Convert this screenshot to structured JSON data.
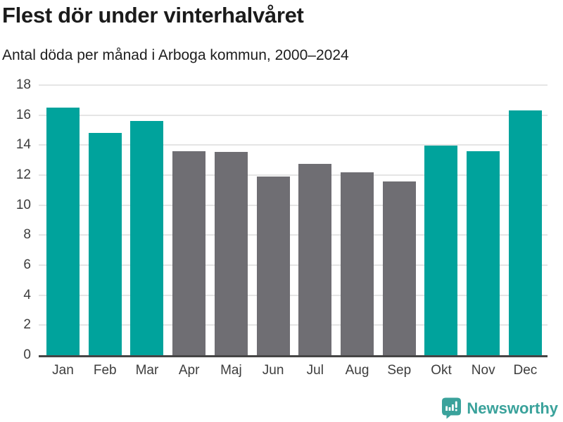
{
  "header": {
    "title": "Flest dör under vinterhalvåret",
    "subtitle": "Antal döda per månad i Arboga kommun, 2000–2024"
  },
  "chart_data": {
    "type": "bar",
    "title": "Flest dör under vinterhalvåret",
    "subtitle": "Antal döda per månad i Arboga kommun, 2000–2024",
    "categories": [
      "Jan",
      "Feb",
      "Mar",
      "Apr",
      "Maj",
      "Jun",
      "Jul",
      "Aug",
      "Sep",
      "Okt",
      "Nov",
      "Dec"
    ],
    "values": [
      16.5,
      14.8,
      15.6,
      13.6,
      13.55,
      11.9,
      12.75,
      12.2,
      11.6,
      13.95,
      13.6,
      16.3
    ],
    "bar_color_keys": [
      "winter",
      "winter",
      "winter",
      "summer",
      "summer",
      "summer",
      "summer",
      "summer",
      "summer",
      "winter",
      "winter",
      "winter"
    ],
    "colors": {
      "winter": "#00a39c",
      "summer": "#6f6e73"
    },
    "xlabel": "",
    "ylabel": "",
    "ylim": [
      0,
      18
    ],
    "yticks": [
      0,
      2,
      4,
      6,
      8,
      10,
      12,
      14,
      16,
      18
    ],
    "grid": true,
    "gridline_color": "#e5e5e5",
    "axis_line_color": "#454545",
    "tick_label_color": "#3d3d3d",
    "legend": "none"
  },
  "footer": {
    "brand": "Newsworthy",
    "brand_color": "#3aa29b",
    "logo_icon": "bar-chart-speech-bubble"
  }
}
